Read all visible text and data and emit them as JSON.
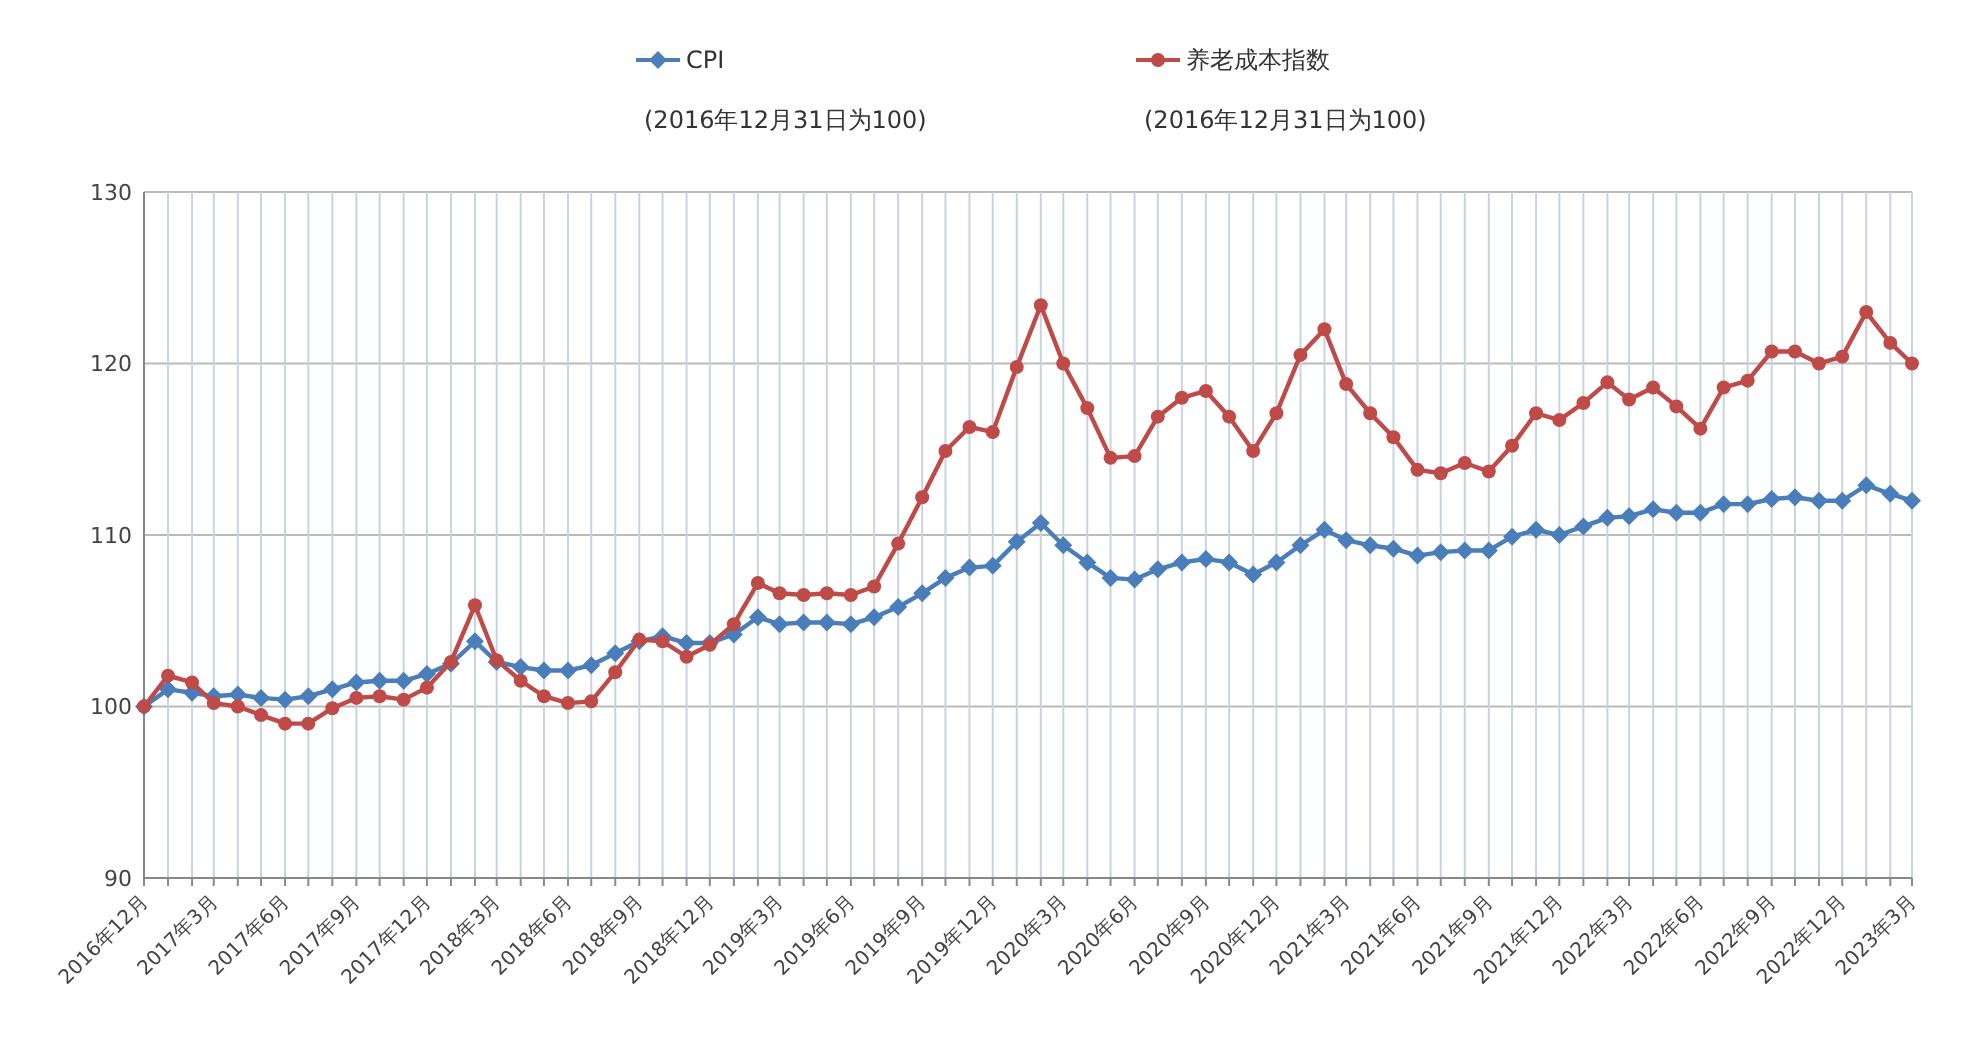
{
  "chart_data": {
    "type": "line",
    "x": [
      "2016-12",
      "2017-01",
      "2017-02",
      "2017-03",
      "2017-04",
      "2017-05",
      "2017-06",
      "2017-07",
      "2017-08",
      "2017-09",
      "2017-10",
      "2017-11",
      "2017-12",
      "2018-01",
      "2018-02",
      "2018-03",
      "2018-04",
      "2018-05",
      "2018-06",
      "2018-07",
      "2018-08",
      "2018-09",
      "2018-10",
      "2018-11",
      "2018-12",
      "2019-01",
      "2019-02",
      "2019-03",
      "2019-04",
      "2019-05",
      "2019-06",
      "2019-07",
      "2019-08",
      "2019-09",
      "2019-10",
      "2019-11",
      "2019-12",
      "2020-01",
      "2020-02",
      "2020-03",
      "2020-04",
      "2020-05",
      "2020-06",
      "2020-07",
      "2020-08",
      "2020-09",
      "2020-10",
      "2020-11",
      "2020-12",
      "2021-01",
      "2021-02",
      "2021-03",
      "2021-04",
      "2021-05",
      "2021-06",
      "2021-07",
      "2021-08",
      "2021-09",
      "2021-10",
      "2021-11",
      "2021-12",
      "2022-01",
      "2022-02",
      "2022-03",
      "2022-04",
      "2022-05",
      "2022-06",
      "2022-07",
      "2022-08",
      "2022-09",
      "2022-10",
      "2022-11",
      "2022-12",
      "2023-01",
      "2023-02",
      "2023-03"
    ],
    "series": [
      {
        "name": "CPI",
        "color": "#4a7ebb",
        "marker": "diamond",
        "values": [
          100,
          101.0,
          100.8,
          100.6,
          100.7,
          100.5,
          100.4,
          100.6,
          101.0,
          101.4,
          101.5,
          101.5,
          101.9,
          102.5,
          103.8,
          102.6,
          102.3,
          102.1,
          102.1,
          102.4,
          103.1,
          103.8,
          104.1,
          103.7,
          103.7,
          104.2,
          105.2,
          104.8,
          104.9,
          104.9,
          104.8,
          105.2,
          105.8,
          106.6,
          107.5,
          108.1,
          108.2,
          109.6,
          110.7,
          109.4,
          108.4,
          107.5,
          107.4,
          108.0,
          108.4,
          108.6,
          108.4,
          107.7,
          108.4,
          109.4,
          110.3,
          109.7,
          109.4,
          109.2,
          108.8,
          109.0,
          109.1,
          109.1,
          109.9,
          110.3,
          110.0,
          110.5,
          111.0,
          111.1,
          111.5,
          111.3,
          111.3,
          111.8,
          111.8,
          112.1,
          112.2,
          112.0,
          112.0,
          112.9,
          112.4,
          112.0
        ]
      },
      {
        "name": "养老成本指数",
        "color": "#be4b48",
        "marker": "circle",
        "values": [
          100,
          101.8,
          101.4,
          100.2,
          100.0,
          99.5,
          99.0,
          99.0,
          99.9,
          100.5,
          100.6,
          100.4,
          101.1,
          102.6,
          105.9,
          102.7,
          101.5,
          100.6,
          100.2,
          100.3,
          102.0,
          103.9,
          103.8,
          102.9,
          103.6,
          104.8,
          107.2,
          106.6,
          106.5,
          106.6,
          106.5,
          107.0,
          109.5,
          112.2,
          114.9,
          116.3,
          116.0,
          119.8,
          123.4,
          120.0,
          117.4,
          114.5,
          114.6,
          116.9,
          118.0,
          118.4,
          116.9,
          114.9,
          117.1,
          120.5,
          122.0,
          118.8,
          117.1,
          115.7,
          113.8,
          113.6,
          114.2,
          113.7,
          115.2,
          117.1,
          116.7,
          117.7,
          118.9,
          117.9,
          118.6,
          117.5,
          116.2,
          118.6,
          119.0,
          120.7,
          120.7,
          120.0,
          120.4,
          123.0,
          121.2,
          120.0
        ]
      }
    ],
    "annotations": [
      "(2016年12月31日为100)",
      "(2016年12月31日为100)"
    ],
    "ylim": [
      90,
      130
    ],
    "yticks": [
      90,
      100,
      110,
      120,
      130
    ],
    "xlim": [
      "2016-12",
      "2023-03"
    ],
    "xticks": [
      {
        "value": "2016-12",
        "label": "2016年12月"
      },
      {
        "value": "2017-01",
        "label": null
      },
      {
        "value": "2017-02",
        "label": null
      },
      {
        "value": "2017-03",
        "label": "2017年3月"
      },
      {
        "value": "2017-04",
        "label": null
      },
      {
        "value": "2017-05",
        "label": null
      },
      {
        "value": "2017-06",
        "label": "2017年6月"
      },
      {
        "value": "2017-07",
        "label": null
      },
      {
        "value": "2017-08",
        "label": null
      },
      {
        "value": "2017-09",
        "label": "2017年9月"
      },
      {
        "value": "2017-10",
        "label": null
      },
      {
        "value": "2017-11",
        "label": null
      },
      {
        "value": "2017-12",
        "label": "2017年12月"
      },
      {
        "value": "2018-01",
        "label": null
      },
      {
        "value": "2018-02",
        "label": null
      },
      {
        "value": "2018-03",
        "label": "2018年3月"
      },
      {
        "value": "2018-04",
        "label": null
      },
      {
        "value": "2018-05",
        "label": null
      },
      {
        "value": "2018-06",
        "label": "2018年6月"
      },
      {
        "value": "2018-07",
        "label": null
      },
      {
        "value": "2018-08",
        "label": null
      },
      {
        "value": "2018-09",
        "label": "2018年9月"
      },
      {
        "value": "2018-10",
        "label": null
      },
      {
        "value": "2018-11",
        "label": null
      },
      {
        "value": "2018-12",
        "label": "2018年12月"
      },
      {
        "value": "2019-01",
        "label": null
      },
      {
        "value": "2019-02",
        "label": null
      },
      {
        "value": "2019-03",
        "label": "2019年3月"
      },
      {
        "value": "2019-04",
        "label": null
      },
      {
        "value": "2019-05",
        "label": null
      },
      {
        "value": "2019-06",
        "label": "2019年6月"
      },
      {
        "value": "2019-07",
        "label": null
      },
      {
        "value": "2019-08",
        "label": null
      },
      {
        "value": "2019-09",
        "label": "2019年9月"
      },
      {
        "value": "2019-10",
        "label": null
      },
      {
        "value": "2019-11",
        "label": null
      },
      {
        "value": "2019-12",
        "label": "2019年12月"
      },
      {
        "value": "2020-01",
        "label": null
      },
      {
        "value": "2020-02",
        "label": null
      },
      {
        "value": "2020-03",
        "label": "2020年3月"
      },
      {
        "value": "2020-04",
        "label": null
      },
      {
        "value": "2020-05",
        "label": null
      },
      {
        "value": "2020-06",
        "label": "2020年6月"
      },
      {
        "value": "2020-07",
        "label": null
      },
      {
        "value": "2020-08",
        "label": null
      },
      {
        "value": "2020-09",
        "label": "2020年9月"
      },
      {
        "value": "2020-10",
        "label": null
      },
      {
        "value": "2020-11",
        "label": null
      },
      {
        "value": "2020-12",
        "label": "2020年12月"
      },
      {
        "value": "2021-01",
        "label": null
      },
      {
        "value": "2021-02",
        "label": null
      },
      {
        "value": "2021-03",
        "label": "2021年3月"
      },
      {
        "value": "2021-04",
        "label": null
      },
      {
        "value": "2021-05",
        "label": null
      },
      {
        "value": "2021-06",
        "label": "2021年6月"
      },
      {
        "value": "2021-07",
        "label": null
      },
      {
        "value": "2021-08",
        "label": null
      },
      {
        "value": "2021-09",
        "label": "2021年9月"
      },
      {
        "value": "2021-10",
        "label": null
      },
      {
        "value": "2021-11",
        "label": null
      },
      {
        "value": "2021-12",
        "label": "2021年12月"
      },
      {
        "value": "2022-01",
        "label": null
      },
      {
        "value": "2022-02",
        "label": null
      },
      {
        "value": "2022-03",
        "label": "2022年3月"
      },
      {
        "value": "2022-04",
        "label": null
      },
      {
        "value": "2022-05",
        "label": null
      },
      {
        "value": "2022-06",
        "label": "2022年6月"
      },
      {
        "value": "2022-07",
        "label": null
      },
      {
        "value": "2022-08",
        "label": null
      },
      {
        "value": "2022-09",
        "label": "2022年9月"
      },
      {
        "value": "2022-10",
        "label": null
      },
      {
        "value": "2022-11",
        "label": null
      },
      {
        "value": "2022-12",
        "label": "2022年12月"
      },
      {
        "value": "2023-01",
        "label": null
      },
      {
        "value": "2023-02",
        "label": null
      },
      {
        "value": "2023-03",
        "label": "2023年3月"
      }
    ],
    "grid": true,
    "legend": "top",
    "line_style": "solid"
  }
}
